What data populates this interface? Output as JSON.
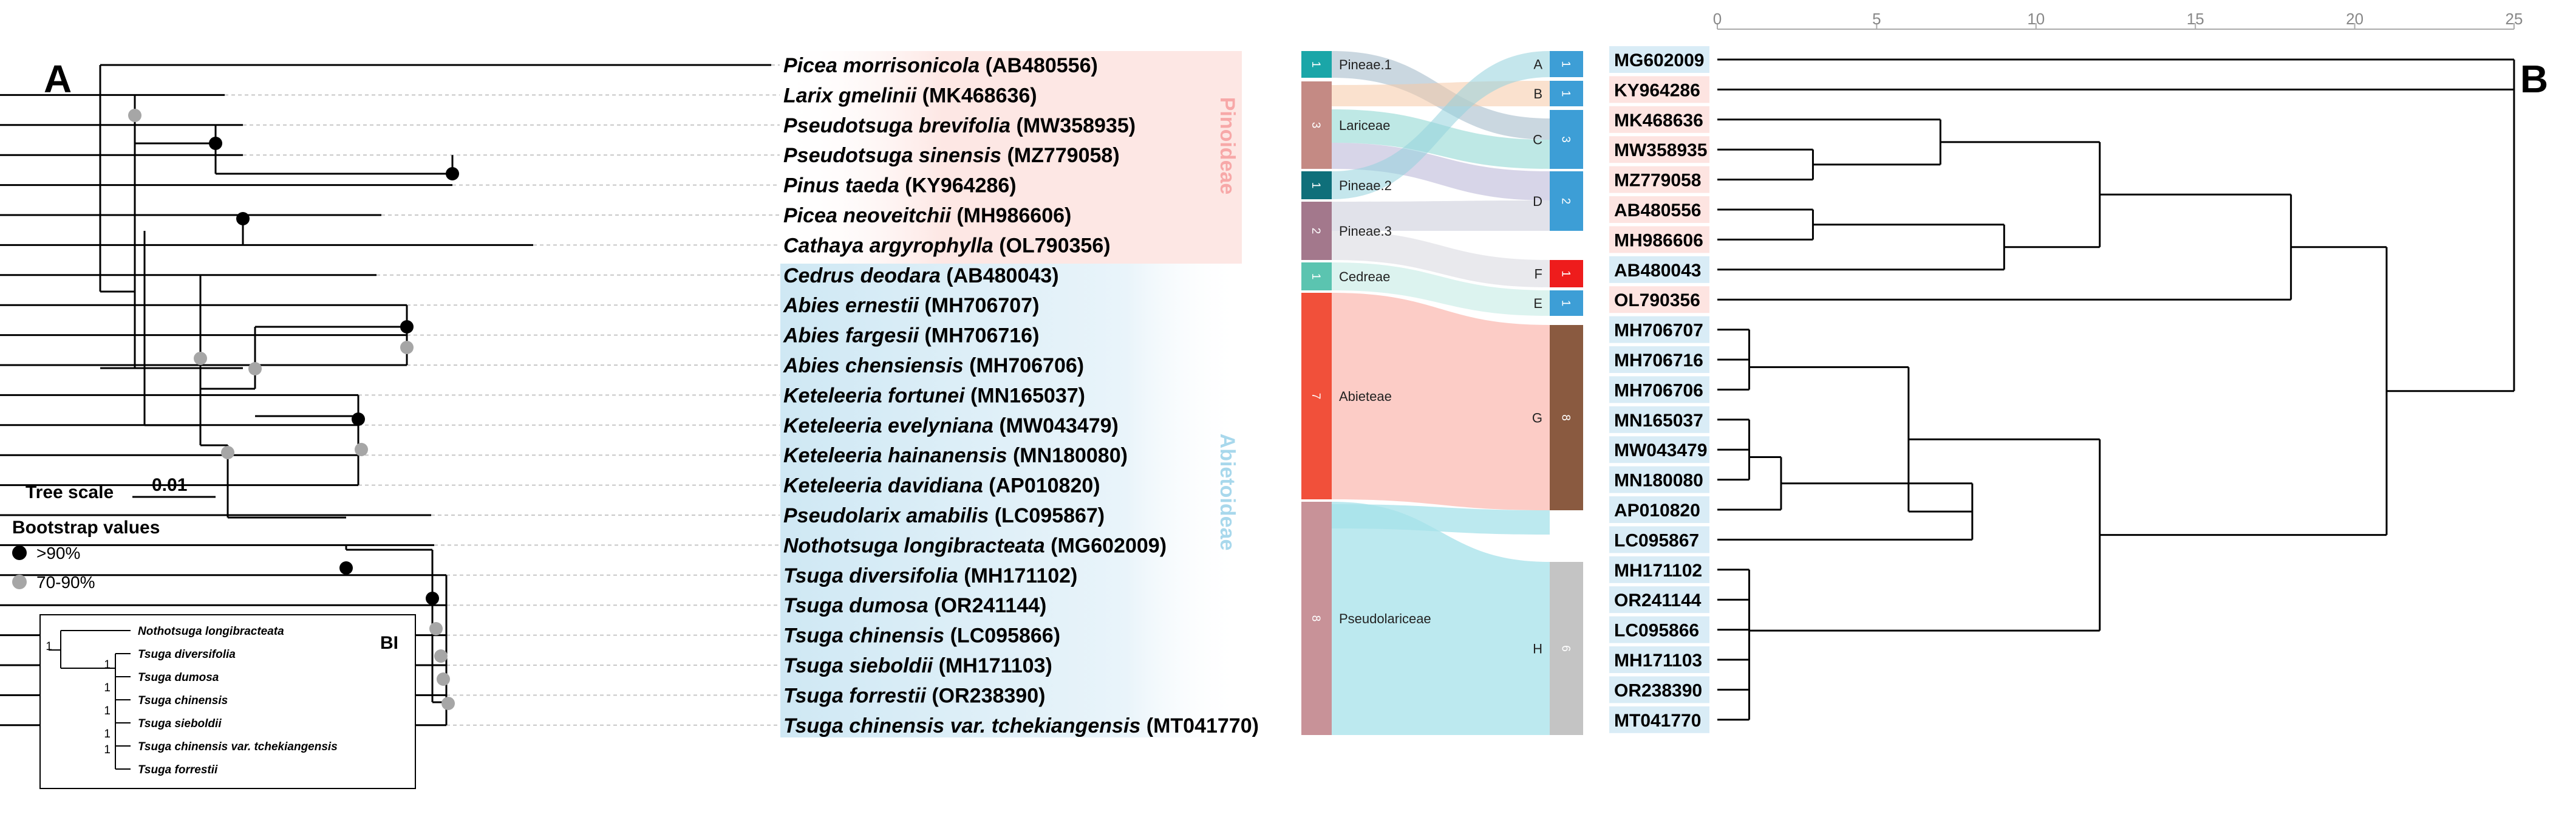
{
  "panels": {
    "a": "A",
    "b": "B"
  },
  "subfamilies": [
    {
      "label": "Pinoideae",
      "color": "#f7a8a8"
    },
    {
      "label": "Abietoideae",
      "color": "#a8d8ec"
    }
  ],
  "tips": [
    {
      "name": "Picea morrisonicola",
      "acc": "(AB480556)",
      "group": "pin"
    },
    {
      "name": "Larix gmelinii",
      "acc": "(MK468636)",
      "group": "pin"
    },
    {
      "name": "Pseudotsuga brevifolia",
      "acc": "(MW358935)",
      "group": "pin"
    },
    {
      "name": "Pseudotsuga sinensis",
      "acc": "(MZ779058)",
      "group": "pin"
    },
    {
      "name": "Pinus taeda",
      "acc": "(KY964286)",
      "group": "pin"
    },
    {
      "name": "Picea neoveitchii",
      "acc": "(MH986606)",
      "group": "pin"
    },
    {
      "name": "Cathaya argyrophylla",
      "acc": "(OL790356)",
      "group": "pin"
    },
    {
      "name": "Cedrus deodara",
      "acc": "(AB480043)",
      "group": "abi"
    },
    {
      "name": "Abies ernestii",
      "acc": "(MH706707)",
      "group": "abi"
    },
    {
      "name": "Abies fargesii",
      "acc": "(MH706716)",
      "group": "abi"
    },
    {
      "name": "Abies chensiensis",
      "acc": "(MH706706)",
      "group": "abi"
    },
    {
      "name": "Keteleeria fortunei",
      "acc": "(MN165037)",
      "group": "abi"
    },
    {
      "name": "Keteleeria evelyniana",
      "acc": "(MW043479)",
      "group": "abi"
    },
    {
      "name": "Keteleeria hainanensis",
      "acc": "(MN180080)",
      "group": "abi"
    },
    {
      "name": "Keteleeria davidiana",
      "acc": "(AP010820)",
      "group": "abi"
    },
    {
      "name": "Pseudolarix amabilis",
      "acc": "(LC095867)",
      "group": "abi"
    },
    {
      "name": "Nothotsuga longibracteata",
      "acc": "(MG602009)",
      "group": "abi"
    },
    {
      "name": "Tsuga diversifolia",
      "acc": "(MH171102)",
      "group": "abi"
    },
    {
      "name": "Tsuga dumosa",
      "acc": "(OR241144)",
      "group": "abi"
    },
    {
      "name": "Tsuga chinensis",
      "acc": "(LC095866)",
      "group": "abi"
    },
    {
      "name": "Tsuga sieboldii",
      "acc": "(MH171103)",
      "group": "abi"
    },
    {
      "name": "Tsuga forrestii",
      "acc": "(OR238390)",
      "group": "abi"
    },
    {
      "name": "Tsuga chinensis var. tchekiangensis",
      "acc": "(MT041770)",
      "group": "abi"
    }
  ],
  "tree_scale": {
    "title": "Tree scale",
    "value": "0.01"
  },
  "bootstrap_legend": {
    "title": "Bootstrap values",
    "items": [
      {
        "label": ">90%",
        "color": "#000000"
      },
      {
        "label": "70-90%",
        "color": "#a6a6a6"
      }
    ]
  },
  "bi_inset": {
    "label": "BI",
    "tips": [
      "Nothotsuga longibracteata",
      "Tsuga diversifolia",
      "Tsuga dumosa",
      "Tsuga chinensis",
      "Tsuga sieboldii",
      "Tsuga chinensis var. tchekiangensis",
      "Tsuga forrestii"
    ],
    "support": [
      "1",
      "1",
      "1",
      "1",
      "1",
      "1"
    ]
  },
  "sankey": {
    "left": [
      {
        "label": "Pineae.1",
        "count": "1",
        "color": "#1aa6a8"
      },
      {
        "label": "Lariceae",
        "count": "3",
        "color": "#c48a84"
      },
      {
        "label": "Pineae.2",
        "count": "1",
        "color": "#0f6f7a"
      },
      {
        "label": "Pineae.3",
        "count": "2",
        "color": "#a3788c"
      },
      {
        "label": "Cedreae",
        "count": "1",
        "color": "#5bc4b0"
      },
      {
        "label": "Abieteae",
        "count": "7",
        "color": "#f1503a"
      },
      {
        "label": "Pseudolariceae",
        "count": "8",
        "color": "#c89298"
      }
    ],
    "right": [
      {
        "label": "A",
        "count": "1",
        "color": "#3d9ed6"
      },
      {
        "label": "B",
        "count": "1",
        "color": "#3d9ed6"
      },
      {
        "label": "C",
        "count": "3",
        "color": "#3d9ed6"
      },
      {
        "label": "D",
        "count": "2",
        "color": "#3d9ed6"
      },
      {
        "label": "F",
        "count": "1",
        "color": "#ee1c1c"
      },
      {
        "label": "E",
        "count": "1",
        "color": "#3d9ed6"
      },
      {
        "label": "G",
        "count": "8",
        "color": "#8a5a40"
      },
      {
        "label": "H",
        "count": "6",
        "color": "#c4c4c4"
      }
    ]
  },
  "dendrogram": {
    "axis_ticks": [
      "0",
      "5",
      "10",
      "15",
      "20",
      "25"
    ],
    "leaves": [
      "MG602009",
      "KY964286",
      "MK468636",
      "MW358935",
      "MZ779058",
      "AB480556",
      "MH986606",
      "AB480043",
      "OL790356",
      "MH706707",
      "MH706716",
      "MH706706",
      "MN165037",
      "MW043479",
      "MN180080",
      "AP010820",
      "LC095867",
      "MH171102",
      "OR241144",
      "LC095866",
      "MH171103",
      "OR238390",
      "MT041770"
    ]
  }
}
